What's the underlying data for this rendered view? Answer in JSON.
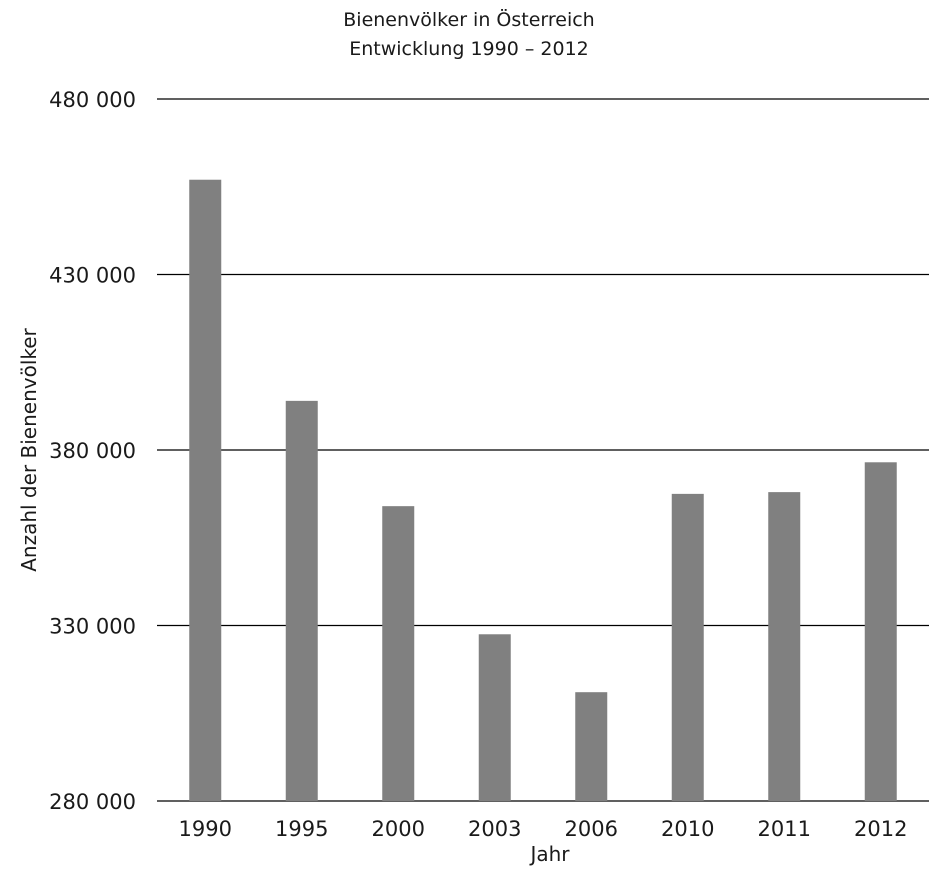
{
  "chart_data": {
    "type": "bar",
    "title": "Bienenvölker in Österreich",
    "subtitle": "Entwicklung 1990 – 2012",
    "xlabel": "Jahr",
    "ylabel": "Anzahl der Bienenvölker",
    "categories": [
      "1990",
      "1995",
      "2000",
      "2003",
      "2006",
      "2010",
      "2011",
      "2012"
    ],
    "values": [
      457000,
      394000,
      364000,
      327500,
      311000,
      367500,
      368000,
      376500
    ],
    "ylim": [
      280000,
      480000
    ],
    "yticks": [
      280000,
      330000,
      380000,
      430000,
      480000
    ],
    "ytick_labels": [
      "280 000",
      "330 000",
      "380 000",
      "430 000",
      "480 000"
    ],
    "grid": true,
    "legend": "none",
    "bar_color": "#808080"
  }
}
